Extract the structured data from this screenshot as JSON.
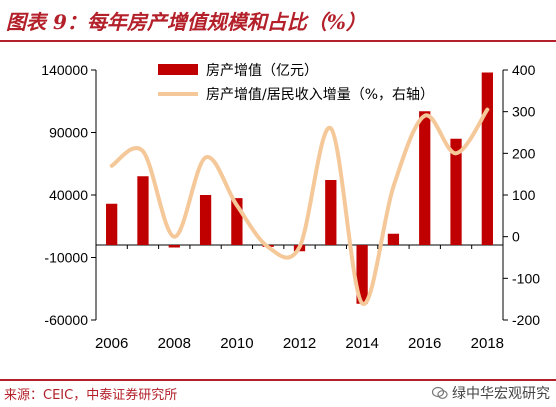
{
  "header": {
    "title": "图表 9：每年房产增值规模和占比（%）"
  },
  "footer": {
    "source": "来源：CEIC，中泰证券研究所",
    "watermark": "绿中华宏观研究"
  },
  "colors": {
    "brand": "#b3202a",
    "bar": "#c00000",
    "line": "#f5c89a",
    "axis": "#000000"
  },
  "chart_data": {
    "type": "bar",
    "x": [
      2006,
      2007,
      2008,
      2009,
      2010,
      2011,
      2012,
      2013,
      2014,
      2015,
      2016,
      2017,
      2018
    ],
    "xticks": [
      "2006",
      "2008",
      "2010",
      "2012",
      "2014",
      "2016",
      "2018"
    ],
    "ylim_left": [
      -60000,
      140000
    ],
    "yticks_left": [
      "140000",
      "90000",
      "40000",
      "-10000",
      "-60000"
    ],
    "ylim_right": [
      -200,
      400
    ],
    "yticks_right": [
      "400",
      "300",
      "200",
      "100",
      "0",
      "-100",
      "-200"
    ],
    "series": [
      {
        "name": "房产增值（亿元）",
        "type": "bar",
        "axis": "left",
        "values": [
          33000,
          55000,
          -2000,
          40000,
          37500,
          -1500,
          -5000,
          52000,
          -47000,
          9000,
          107000,
          85000,
          138000
        ]
      },
      {
        "name": "房产增值/居民收入增量（%，右轴）",
        "type": "line",
        "axis": "right",
        "values": [
          170,
          205,
          0,
          190,
          75,
          -25,
          -25,
          260,
          -160,
          120,
          290,
          200,
          305
        ]
      }
    ],
    "legend_position": "top-center"
  }
}
